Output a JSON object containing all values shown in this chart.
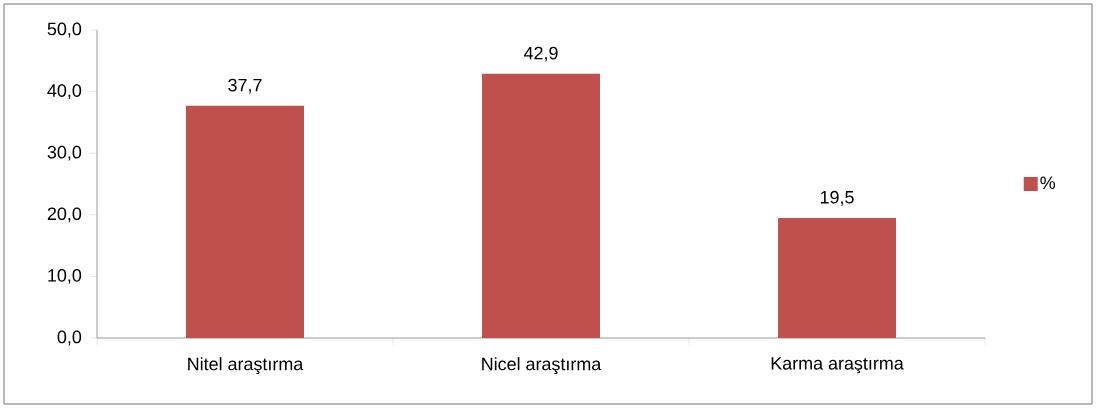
{
  "chart_data": {
    "type": "bar",
    "categories": [
      "Nitel araştırma",
      "Nicel araştırma",
      "Karma araştırma"
    ],
    "series": [
      {
        "name": "%",
        "color": "#c0504d",
        "values": [
          37.7,
          42.9,
          19.5
        ],
        "value_labels": [
          "37,7",
          "42,9",
          "19,5"
        ]
      }
    ],
    "ylim": [
      0,
      50
    ],
    "yticks": [
      {
        "value": 0,
        "label": "0,0"
      },
      {
        "value": 10,
        "label": "10,0"
      },
      {
        "value": 20,
        "label": "20,0"
      },
      {
        "value": 30,
        "label": "30,0"
      },
      {
        "value": 40,
        "label": "40,0"
      },
      {
        "value": 50,
        "label": "50,0"
      }
    ],
    "grid": false,
    "legend": "right"
  }
}
